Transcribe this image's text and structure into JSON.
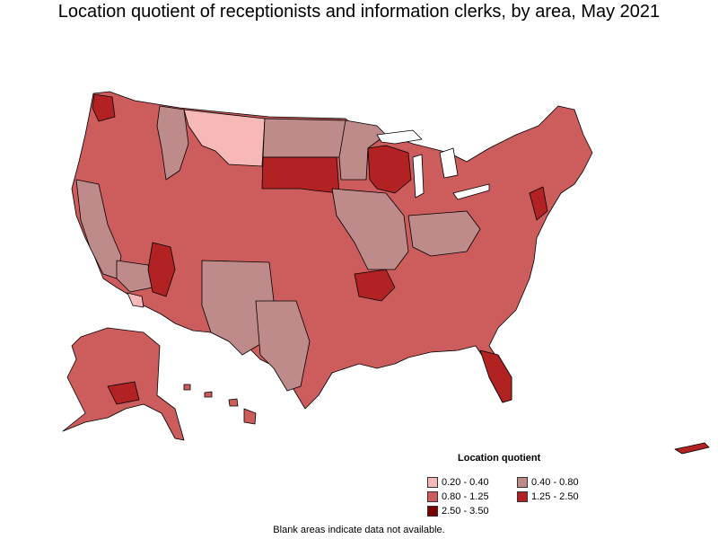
{
  "title": "Location quotient of receptionists and information clerks, by area, May 2021",
  "legend": {
    "title": "Location quotient",
    "items": [
      {
        "label": "0.20 - 0.40",
        "color": "#f7b8b8"
      },
      {
        "label": "0.40 - 0.80",
        "color": "#bf8a8a"
      },
      {
        "label": "0.80 - 1.25",
        "color": "#cd5c5c"
      },
      {
        "label": "1.25 - 2.50",
        "color": "#b22222"
      },
      {
        "label": "2.50 - 3.50",
        "color": "#7a0000"
      }
    ]
  },
  "footnote": "Blank areas indicate data not available.",
  "colors": {
    "border": "#000000",
    "background": "#ffffff"
  }
}
